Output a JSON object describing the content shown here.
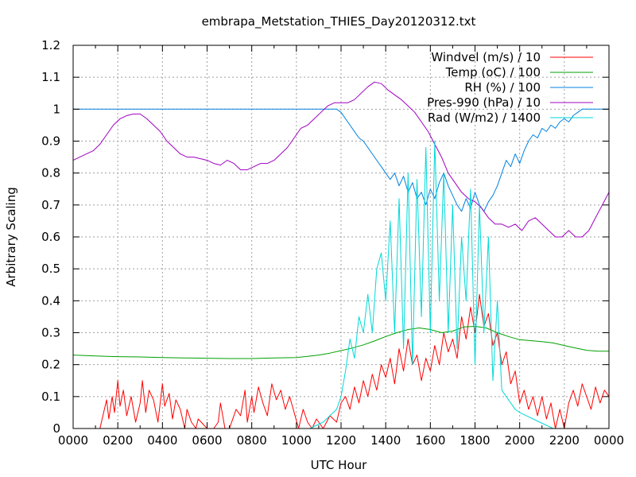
{
  "chart_data": {
    "type": "line",
    "title": "embrapa_Metstation_THIES_Day20120312.txt",
    "xlabel": "UTC Hour",
    "ylabel": "Arbitrary Scaling",
    "xlim": [
      0,
      24
    ],
    "ylim": [
      0,
      1.2
    ],
    "grid": true,
    "legend_position": "top-right",
    "x_ticks": [
      {
        "value": 0,
        "label": "0000"
      },
      {
        "value": 2,
        "label": "0200"
      },
      {
        "value": 4,
        "label": "0400"
      },
      {
        "value": 6,
        "label": "0600"
      },
      {
        "value": 8,
        "label": "0800"
      },
      {
        "value": 10,
        "label": "1000"
      },
      {
        "value": 12,
        "label": "1200"
      },
      {
        "value": 14,
        "label": "1400"
      },
      {
        "value": 16,
        "label": "1600"
      },
      {
        "value": 18,
        "label": "1800"
      },
      {
        "value": 20,
        "label": "2000"
      },
      {
        "value": 22,
        "label": "2200"
      },
      {
        "value": 24,
        "label": "0000"
      }
    ],
    "y_ticks": [
      {
        "value": 0,
        "label": "0"
      },
      {
        "value": 0.1,
        "label": "0.1"
      },
      {
        "value": 0.2,
        "label": "0.2"
      },
      {
        "value": 0.3,
        "label": "0.3"
      },
      {
        "value": 0.4,
        "label": "0.4"
      },
      {
        "value": 0.5,
        "label": "0.5"
      },
      {
        "value": 0.6,
        "label": "0.6"
      },
      {
        "value": 0.7,
        "label": "0.7"
      },
      {
        "value": 0.8,
        "label": "0.8"
      },
      {
        "value": 0.9,
        "label": "0.9"
      },
      {
        "value": 1.0,
        "label": "1"
      },
      {
        "value": 1.1,
        "label": "1.1"
      },
      {
        "value": 1.2,
        "label": "1.2"
      }
    ],
    "series": [
      {
        "name": "Windvel (m/s) / 10",
        "color": "#ff0000",
        "x": [
          0,
          0.5,
          1.2,
          1.5,
          1.6,
          1.75,
          1.85,
          2.0,
          2.1,
          2.25,
          2.4,
          2.6,
          2.8,
          3.0,
          3.1,
          3.25,
          3.4,
          3.6,
          3.8,
          4.0,
          4.1,
          4.3,
          4.45,
          4.6,
          4.8,
          5.0,
          5.1,
          5.3,
          5.5,
          5.6,
          6.0,
          6.3,
          6.5,
          6.6,
          6.8,
          7.0,
          7.3,
          7.5,
          7.7,
          7.8,
          8.0,
          8.1,
          8.3,
          8.5,
          8.7,
          8.9,
          9.1,
          9.3,
          9.5,
          9.7,
          9.9,
          10.1,
          10.3,
          10.5,
          10.7,
          10.9,
          11.2,
          11.5,
          11.8,
          12.0,
          12.2,
          12.4,
          12.6,
          12.8,
          13.0,
          13.2,
          13.4,
          13.6,
          13.8,
          14.0,
          14.2,
          14.4,
          14.6,
          14.8,
          15.0,
          15.2,
          15.4,
          15.6,
          15.8,
          16.0,
          16.2,
          16.4,
          16.6,
          16.8,
          17.0,
          17.2,
          17.4,
          17.6,
          17.8,
          18.0,
          18.2,
          18.4,
          18.6,
          18.8,
          19.0,
          19.2,
          19.4,
          19.6,
          19.8,
          20.0,
          20.2,
          20.4,
          20.6,
          20.8,
          21.0,
          21.2,
          21.4,
          21.6,
          21.8,
          22.0,
          22.2,
          22.4,
          22.6,
          22.8,
          23.0,
          23.2,
          23.4,
          23.6,
          23.8,
          24.0
        ],
        "values": [
          0,
          0,
          0,
          0.09,
          0.03,
          0.1,
          0.05,
          0.15,
          0.07,
          0.12,
          0.04,
          0.1,
          0.02,
          0.08,
          0.15,
          0.05,
          0.12,
          0.09,
          0.02,
          0.14,
          0.07,
          0.11,
          0.03,
          0.09,
          0.06,
          0.0,
          0.06,
          0.02,
          0.0,
          0.03,
          0.0,
          0.0,
          0.02,
          0.08,
          0.0,
          0.0,
          0.06,
          0.04,
          0.12,
          0.02,
          0.1,
          0.05,
          0.13,
          0.08,
          0.04,
          0.14,
          0.09,
          0.12,
          0.06,
          0.1,
          0.05,
          0.0,
          0.06,
          0.02,
          0.0,
          0.03,
          0.0,
          0.04,
          0.02,
          0.08,
          0.1,
          0.06,
          0.13,
          0.08,
          0.15,
          0.1,
          0.17,
          0.12,
          0.2,
          0.16,
          0.22,
          0.14,
          0.25,
          0.18,
          0.28,
          0.2,
          0.23,
          0.15,
          0.22,
          0.18,
          0.26,
          0.2,
          0.3,
          0.24,
          0.28,
          0.22,
          0.35,
          0.28,
          0.38,
          0.3,
          0.42,
          0.32,
          0.36,
          0.26,
          0.3,
          0.2,
          0.24,
          0.14,
          0.18,
          0.08,
          0.12,
          0.06,
          0.1,
          0.04,
          0.1,
          0.03,
          0.08,
          0.0,
          0.06,
          0.0,
          0.08,
          0.12,
          0.07,
          0.14,
          0.1,
          0.06,
          0.13,
          0.08,
          0.12,
          0.1
        ]
      },
      {
        "name": "Temp (oC) / 100",
        "color": "#00a000",
        "x": [
          0,
          1,
          2,
          3,
          4,
          5,
          6,
          7,
          8,
          9,
          10,
          10.5,
          11,
          11.5,
          12,
          12.5,
          13,
          13.5,
          14,
          14.5,
          15,
          15.5,
          16,
          16.5,
          17,
          17.5,
          18,
          18.5,
          19,
          19.5,
          20,
          20.5,
          21,
          21.5,
          22,
          22.5,
          23,
          23.5,
          24
        ],
        "values": [
          0.23,
          0.227,
          0.225,
          0.224,
          0.222,
          0.221,
          0.22,
          0.219,
          0.219,
          0.221,
          0.222,
          0.226,
          0.23,
          0.236,
          0.244,
          0.252,
          0.262,
          0.274,
          0.288,
          0.3,
          0.31,
          0.315,
          0.31,
          0.3,
          0.305,
          0.318,
          0.32,
          0.315,
          0.3,
          0.288,
          0.278,
          0.275,
          0.272,
          0.268,
          0.26,
          0.252,
          0.245,
          0.242,
          0.242
        ]
      },
      {
        "name": "RH (%) / 100",
        "color": "#0080e0",
        "x": [
          0,
          1,
          2,
          3,
          4,
          5,
          6,
          7,
          8,
          9,
          10,
          10.5,
          11,
          11.5,
          11.8,
          12.0,
          12.2,
          12.4,
          12.6,
          12.8,
          13.0,
          13.2,
          13.4,
          13.6,
          13.8,
          14.0,
          14.2,
          14.4,
          14.6,
          14.8,
          15.0,
          15.2,
          15.4,
          15.6,
          15.8,
          16.0,
          16.2,
          16.4,
          16.6,
          16.8,
          17.0,
          17.2,
          17.4,
          17.6,
          17.8,
          18.0,
          18.2,
          18.4,
          18.6,
          18.8,
          19.0,
          19.2,
          19.4,
          19.6,
          19.8,
          20.0,
          20.2,
          20.4,
          20.6,
          20.8,
          21.0,
          21.2,
          21.4,
          21.6,
          21.8,
          22.0,
          22.2,
          22.4,
          22.6,
          22.8,
          23.0,
          23.2,
          23.5,
          24.0
        ],
        "values": [
          1.0,
          1.0,
          1.0,
          1.0,
          1.0,
          1.0,
          1.0,
          1.0,
          1.0,
          1.0,
          1.0,
          1.0,
          1.0,
          1.0,
          1.0,
          0.99,
          0.97,
          0.95,
          0.93,
          0.91,
          0.9,
          0.88,
          0.86,
          0.84,
          0.82,
          0.8,
          0.78,
          0.8,
          0.76,
          0.79,
          0.74,
          0.77,
          0.72,
          0.74,
          0.7,
          0.75,
          0.72,
          0.77,
          0.8,
          0.76,
          0.73,
          0.7,
          0.68,
          0.72,
          0.69,
          0.74,
          0.7,
          0.68,
          0.71,
          0.73,
          0.76,
          0.8,
          0.84,
          0.82,
          0.86,
          0.83,
          0.87,
          0.9,
          0.92,
          0.91,
          0.94,
          0.93,
          0.95,
          0.94,
          0.96,
          0.97,
          0.96,
          0.98,
          0.99,
          1.0,
          1.0,
          1.0,
          1.0,
          1.0
        ]
      },
      {
        "name": "Pres-990 (hPa) / 10",
        "color": "#a000c0",
        "x": [
          0,
          0.3,
          0.6,
          0.9,
          1.2,
          1.5,
          1.8,
          2.1,
          2.4,
          2.7,
          3.0,
          3.3,
          3.6,
          3.9,
          4.2,
          4.5,
          4.8,
          5.1,
          5.4,
          5.7,
          6.0,
          6.3,
          6.6,
          6.9,
          7.2,
          7.5,
          7.8,
          8.1,
          8.4,
          8.7,
          9.0,
          9.3,
          9.6,
          9.9,
          10.2,
          10.5,
          10.8,
          11.1,
          11.4,
          11.7,
          12.0,
          12.3,
          12.6,
          12.9,
          13.2,
          13.5,
          13.8,
          14.1,
          14.4,
          14.7,
          15.0,
          15.3,
          15.6,
          15.9,
          16.2,
          16.5,
          16.8,
          17.1,
          17.4,
          17.7,
          18.0,
          18.3,
          18.6,
          18.9,
          19.2,
          19.5,
          19.8,
          20.1,
          20.4,
          20.7,
          21.0,
          21.3,
          21.6,
          21.9,
          22.2,
          22.5,
          22.8,
          23.1,
          23.4,
          23.7,
          24.0
        ],
        "values": [
          0.84,
          0.85,
          0.86,
          0.87,
          0.89,
          0.92,
          0.95,
          0.97,
          0.98,
          0.985,
          0.985,
          0.97,
          0.95,
          0.93,
          0.9,
          0.88,
          0.86,
          0.85,
          0.85,
          0.845,
          0.84,
          0.83,
          0.825,
          0.84,
          0.83,
          0.81,
          0.81,
          0.82,
          0.83,
          0.83,
          0.84,
          0.86,
          0.88,
          0.91,
          0.94,
          0.95,
          0.97,
          0.99,
          1.01,
          1.02,
          1.02,
          1.02,
          1.03,
          1.05,
          1.07,
          1.085,
          1.08,
          1.06,
          1.045,
          1.03,
          1.01,
          0.99,
          0.96,
          0.93,
          0.89,
          0.85,
          0.8,
          0.77,
          0.74,
          0.72,
          0.71,
          0.69,
          0.66,
          0.64,
          0.64,
          0.63,
          0.64,
          0.62,
          0.65,
          0.66,
          0.64,
          0.62,
          0.6,
          0.6,
          0.62,
          0.6,
          0.6,
          0.62,
          0.66,
          0.7,
          0.74
        ]
      },
      {
        "name": "Rad (W/m2) / 1400",
        "color": "#00d8d8",
        "x": [
          0,
          8,
          10.6,
          10.9,
          11.2,
          11.5,
          11.8,
          12.0,
          12.2,
          12.4,
          12.6,
          12.8,
          13.0,
          13.2,
          13.4,
          13.6,
          13.8,
          14.0,
          14.2,
          14.4,
          14.6,
          14.8,
          15.0,
          15.2,
          15.4,
          15.6,
          15.8,
          16.0,
          16.2,
          16.4,
          16.6,
          16.8,
          17.0,
          17.2,
          17.4,
          17.6,
          17.8,
          18.0,
          18.2,
          18.4,
          18.6,
          18.8,
          19.0,
          19.2,
          19.4,
          19.6,
          19.8,
          20.0,
          20.3,
          20.6,
          20.9,
          21.2,
          21.5,
          21.8,
          22.0,
          24.0
        ],
        "values": [
          0,
          0,
          0,
          0.01,
          0.02,
          0.04,
          0.06,
          0.1,
          0.18,
          0.28,
          0.22,
          0.35,
          0.3,
          0.42,
          0.3,
          0.5,
          0.55,
          0.4,
          0.65,
          0.3,
          0.72,
          0.25,
          0.8,
          0.2,
          0.78,
          0.35,
          0.88,
          0.3,
          0.9,
          0.4,
          0.8,
          0.3,
          0.7,
          0.25,
          0.6,
          0.4,
          0.75,
          0.2,
          0.7,
          0.3,
          0.6,
          0.15,
          0.4,
          0.12,
          0.1,
          0.08,
          0.06,
          0.05,
          0.04,
          0.03,
          0.02,
          0.01,
          0.0,
          0.0,
          0.0,
          0.0
        ]
      }
    ]
  }
}
